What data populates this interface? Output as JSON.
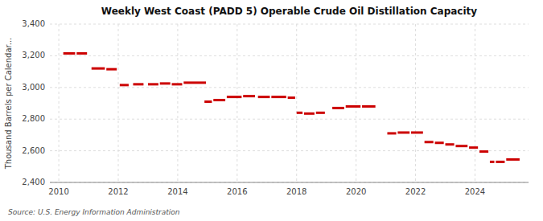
{
  "chart_data": {
    "type": "segments",
    "title": "Weekly West Coast (PADD 5) Operable Crude Oil Distillation Capacity",
    "y_label": "Thousand Barrels per Calendar...",
    "source": "Source: U.S. Energy Information Administration",
    "color": "#cc0000",
    "grid": true,
    "xlim": [
      2009.7,
      2025.8
    ],
    "xticks": [
      2010,
      2012,
      2014,
      2016,
      2018,
      2020,
      2022,
      2024
    ],
    "ylim": [
      2400,
      3400
    ],
    "yticks": [
      {
        "value": 2400,
        "label": "2,400"
      },
      {
        "value": 2600,
        "label": "2,600"
      },
      {
        "value": 2800,
        "label": "2,800"
      },
      {
        "value": 3000,
        "label": "3,000"
      },
      {
        "value": 3200,
        "label": "3,200"
      },
      {
        "value": 3400,
        "label": "3,400"
      }
    ],
    "x_start": [
      2010.15,
      2010.6,
      2011.1,
      2011.6,
      2012.05,
      2012.5,
      2013.0,
      2013.4,
      2013.8,
      2014.2,
      2014.9,
      2015.2,
      2015.65,
      2016.2,
      2016.7,
      2017.15,
      2017.7,
      2018.0,
      2018.25,
      2018.65,
      2019.2,
      2019.65,
      2020.2,
      2021.05,
      2021.4,
      2021.85,
      2022.3,
      2022.65,
      2023.0,
      2023.35,
      2023.8,
      2024.15,
      2024.5,
      2024.7,
      2025.05
    ],
    "x_end": [
      2010.55,
      2010.95,
      2011.55,
      2011.95,
      2012.35,
      2012.85,
      2013.35,
      2013.75,
      2014.15,
      2014.95,
      2015.15,
      2015.6,
      2016.15,
      2016.6,
      2017.1,
      2017.65,
      2017.95,
      2018.2,
      2018.6,
      2018.95,
      2019.6,
      2020.15,
      2020.65,
      2021.35,
      2021.8,
      2022.25,
      2022.6,
      2022.95,
      2023.3,
      2023.75,
      2024.1,
      2024.45,
      2024.65,
      2025.0,
      2025.5
    ],
    "values": [
      3215,
      3215,
      3120,
      3115,
      3015,
      3020,
      3020,
      3025,
      3020,
      3030,
      2910,
      2920,
      2940,
      2945,
      2940,
      2940,
      2935,
      2840,
      2835,
      2840,
      2870,
      2880,
      2880,
      2710,
      2715,
      2715,
      2655,
      2650,
      2640,
      2630,
      2620,
      2595,
      2530,
      2530,
      2545
    ]
  }
}
